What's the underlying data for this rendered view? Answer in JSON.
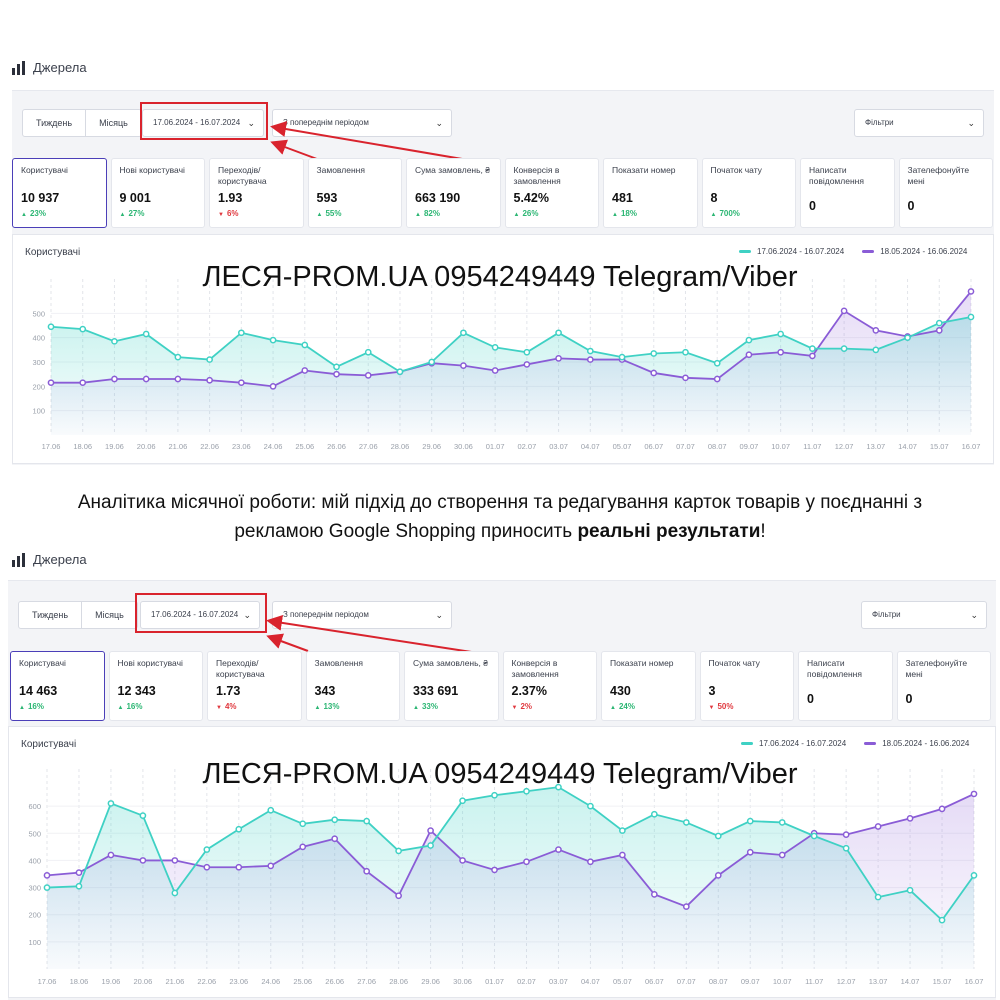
{
  "colors": {
    "current": "#3fd1c4",
    "previous": "#8a5cd6",
    "up": "#2bb673",
    "down": "#e0383e",
    "accent": "#4b3fb8",
    "highlight": "#d9232d"
  },
  "caption": {
    "line1": "Аналітика місячної роботи: мій підхід до створення та редагування карток товарів у поєднанні з",
    "line2_pre": "рекламою Google Shopping приносить ",
    "line2_bold": "реальні результати",
    "line2_post": "!"
  },
  "panels": [
    {
      "header_title": "Джерела",
      "tabs": [
        "Тиждень",
        "Місяць"
      ],
      "date_range": "17.06.2024 - 16.07.2024",
      "compare": "З попереднім періодом",
      "filters": "Фільтри",
      "kpis": [
        {
          "label": "Користувачі",
          "value": "10 937",
          "delta": "23%",
          "dir": "up"
        },
        {
          "label": "Нові користувачі",
          "value": "9 001",
          "delta": "27%",
          "dir": "up"
        },
        {
          "label": "Переходів/ користувача",
          "value": "1.93",
          "delta": "6%",
          "dir": "down"
        },
        {
          "label": "Замовлення",
          "value": "593",
          "delta": "55%",
          "dir": "up"
        },
        {
          "label": "Сума замовлень, ₴",
          "value": "663 190",
          "delta": "82%",
          "dir": "up"
        },
        {
          "label": "Конверсія в замовлення",
          "value": "5.42%",
          "delta": "26%",
          "dir": "up"
        },
        {
          "label": "Показати номер",
          "value": "481",
          "delta": "18%",
          "dir": "up"
        },
        {
          "label": "Початок чату",
          "value": "8",
          "delta": "700%",
          "dir": "up"
        },
        {
          "label": "Написати повідомлення",
          "value": "0",
          "delta": "",
          "dir": ""
        },
        {
          "label": "Зателефонуйте мені",
          "value": "0",
          "delta": "",
          "dir": ""
        }
      ],
      "chart_title": "Користувачі",
      "legend": [
        "17.06.2024 - 16.07.2024",
        "18.05.2024 - 16.06.2024"
      ],
      "watermark": "ЛЕСЯ-PROM.UA 0954249449 Telegram/Viber"
    },
    {
      "header_title": "Джерела",
      "tabs": [
        "Тиждень",
        "Місяць"
      ],
      "date_range": "17.06.2024 - 16.07.2024",
      "compare": "З попереднім періодом",
      "filters": "Фільтри",
      "kpis": [
        {
          "label": "Користувачі",
          "value": "14 463",
          "delta": "16%",
          "dir": "up"
        },
        {
          "label": "Нові користувачі",
          "value": "12 343",
          "delta": "16%",
          "dir": "up"
        },
        {
          "label": "Переходів/ користувача",
          "value": "1.73",
          "delta": "4%",
          "dir": "down"
        },
        {
          "label": "Замовлення",
          "value": "343",
          "delta": "13%",
          "dir": "up"
        },
        {
          "label": "Сума замовлень, ₴",
          "value": "333 691",
          "delta": "33%",
          "dir": "up"
        },
        {
          "label": "Конверсія в замовлення",
          "value": "2.37%",
          "delta": "2%",
          "dir": "down"
        },
        {
          "label": "Показати номер",
          "value": "430",
          "delta": "24%",
          "dir": "up"
        },
        {
          "label": "Початок чату",
          "value": "3",
          "delta": "50%",
          "dir": "down"
        },
        {
          "label": "Написати повідомлення",
          "value": "0",
          "delta": "",
          "dir": ""
        },
        {
          "label": "Зателефонуйте мені",
          "value": "0",
          "delta": "",
          "dir": ""
        }
      ],
      "chart_title": "Користувачі",
      "legend": [
        "17.06.2024 - 16.07.2024",
        "18.05.2024 - 16.06.2024"
      ],
      "watermark": "ЛЕСЯ-PROM.UA 0954249449 Telegram/Viber"
    }
  ],
  "chart_data": [
    {
      "type": "area",
      "title": "Користувачі",
      "categories": [
        "17.06",
        "18.06",
        "19.06",
        "20.06",
        "21.06",
        "22.06",
        "23.06",
        "24.06",
        "25.06",
        "26.06",
        "27.06",
        "28.06",
        "29.06",
        "30.06",
        "01.07",
        "02.07",
        "03.07",
        "04.07",
        "05.07",
        "06.07",
        "07.07",
        "08.07",
        "09.07",
        "10.07",
        "11.07",
        "12.07",
        "13.07",
        "14.07",
        "15.07",
        "16.07"
      ],
      "yticks": [
        100,
        200,
        300,
        400,
        500
      ],
      "ylim": [
        0,
        600
      ],
      "series": [
        {
          "name": "17.06.2024 - 16.07.2024",
          "values": [
            445,
            435,
            385,
            415,
            320,
            310,
            420,
            390,
            370,
            280,
            340,
            260,
            300,
            420,
            360,
            340,
            420,
            345,
            320,
            335,
            340,
            295,
            390,
            415,
            355,
            355,
            350,
            400,
            460,
            485
          ]
        },
        {
          "name": "18.05.2024 - 16.06.2024",
          "values": [
            215,
            215,
            230,
            230,
            230,
            225,
            215,
            200,
            265,
            250,
            245,
            260,
            295,
            285,
            265,
            290,
            315,
            310,
            310,
            255,
            235,
            230,
            330,
            340,
            325,
            510,
            430,
            405,
            430,
            590
          ]
        }
      ]
    },
    {
      "type": "area",
      "title": "Користувачі",
      "categories": [
        "17.06",
        "18.06",
        "19.06",
        "20.06",
        "21.06",
        "22.06",
        "23.06",
        "24.06",
        "25.06",
        "26.06",
        "27.06",
        "28.06",
        "29.06",
        "30.06",
        "01.07",
        "02.07",
        "03.07",
        "04.07",
        "05.07",
        "06.07",
        "07.07",
        "08.07",
        "09.07",
        "10.07",
        "11.07",
        "12.07",
        "13.07",
        "14.07",
        "15.07",
        "16.07"
      ],
      "yticks": [
        100,
        200,
        300,
        400,
        500,
        600
      ],
      "ylim": [
        0,
        700
      ],
      "series": [
        {
          "name": "17.06.2024 - 16.07.2024",
          "values": [
            300,
            305,
            610,
            565,
            280,
            440,
            515,
            585,
            535,
            550,
            545,
            435,
            455,
            620,
            640,
            655,
            670,
            600,
            510,
            570,
            540,
            490,
            545,
            540,
            490,
            445,
            265,
            290,
            180,
            345
          ]
        },
        {
          "name": "18.05.2024 - 16.06.2024",
          "values": [
            345,
            355,
            420,
            400,
            400,
            375,
            375,
            380,
            450,
            480,
            360,
            270,
            510,
            400,
            365,
            395,
            440,
            395,
            420,
            275,
            230,
            345,
            430,
            420,
            500,
            495,
            525,
            555,
            590,
            645
          ]
        }
      ]
    }
  ]
}
